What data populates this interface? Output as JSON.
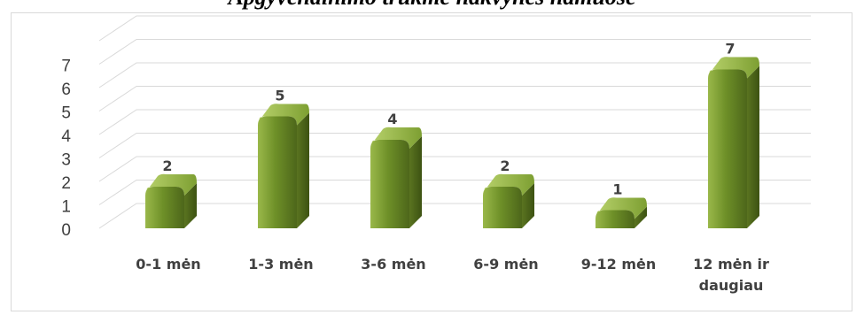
{
  "chart_data": {
    "type": "bar",
    "title": "Apgyvendinimo trukmė nakvynės namuose",
    "categories": [
      "0-1 mėn",
      "1-3 mėn",
      "3-6 mėn",
      "6-9 mėn",
      "9-12 mėn",
      "12 mėn ir daugiau"
    ],
    "values": [
      2,
      5,
      4,
      2,
      1,
      7
    ],
    "ylim": [
      0,
      7
    ],
    "yticks": [
      0,
      1,
      2,
      3,
      4,
      5,
      6,
      7
    ],
    "grid": true,
    "legend": "none",
    "bar_color": "#6b8e23"
  }
}
